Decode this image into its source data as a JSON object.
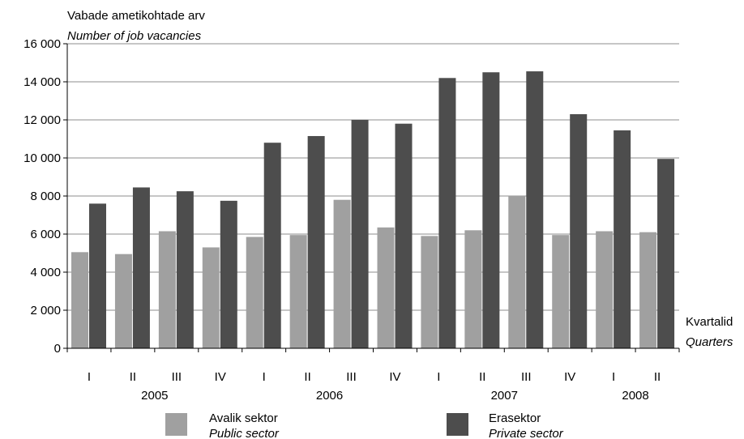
{
  "chart_data": {
    "type": "bar",
    "ylabel_et": "Vabade ametikohtade arv",
    "ylabel_en": "Number of job vacancies",
    "xlabel_et": "Kvartalid",
    "xlabel_en": "Quarters",
    "ylim": [
      0,
      16000
    ],
    "yticks": [
      0,
      2000,
      4000,
      6000,
      8000,
      10000,
      12000,
      14000,
      16000
    ],
    "ytick_labels": [
      "0",
      "2 000",
      "4 000",
      "6 000",
      "8 000",
      "10 000",
      "12 000",
      "14 000",
      "16 000"
    ],
    "grid": true,
    "categories": [
      "I",
      "II",
      "III",
      "IV",
      "I",
      "II",
      "III",
      "IV",
      "I",
      "II",
      "III",
      "IV",
      "I",
      "II"
    ],
    "years": [
      {
        "label": "2005",
        "start": 0,
        "end": 3
      },
      {
        "label": "2006",
        "start": 4,
        "end": 7
      },
      {
        "label": "2007",
        "start": 8,
        "end": 11
      },
      {
        "label": "2008",
        "start": 12,
        "end": 13
      }
    ],
    "series": [
      {
        "name_et": "Avalik sektor",
        "name_en": "Public sector",
        "color": "#a0a0a0",
        "values": [
          5050,
          4950,
          6150,
          5300,
          5850,
          5950,
          7800,
          6350,
          5900,
          6200,
          8000,
          5950,
          6150,
          6100
        ]
      },
      {
        "name_et": "Erasektor",
        "name_en": "Private sector",
        "color": "#4d4d4d",
        "values": [
          7600,
          8450,
          8250,
          7750,
          10800,
          11150,
          12000,
          11800,
          14200,
          14500,
          14550,
          12300,
          11450,
          9950
        ]
      }
    ],
    "legend_position": "bottom"
  }
}
